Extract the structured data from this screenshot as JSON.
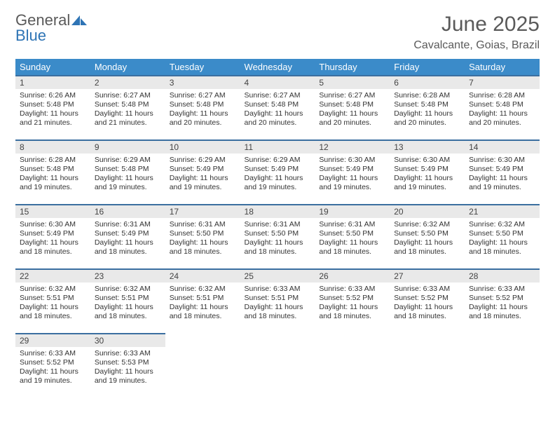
{
  "brand": {
    "part1": "General",
    "part2": "Blue"
  },
  "title": {
    "month": "June 2025",
    "location": "Cavalcante, Goias, Brazil"
  },
  "colors": {
    "header_bg": "#3b8bc9",
    "header_text": "#ffffff",
    "row_border": "#3b6fa0",
    "daynum_bg": "#e9e9e9",
    "brand_gray": "#5a5a5a",
    "brand_blue": "#2e74b5",
    "body_text": "#333333",
    "page_bg": "#ffffff"
  },
  "weekdays": [
    "Sunday",
    "Monday",
    "Tuesday",
    "Wednesday",
    "Thursday",
    "Friday",
    "Saturday"
  ],
  "calendar": {
    "type": "table",
    "columns": 7,
    "cell_fontsize": 10.5,
    "header_fontsize": 13,
    "days": [
      {
        "n": "1",
        "sr": "6:26 AM",
        "ss": "5:48 PM",
        "dl": "11 hours and 21 minutes."
      },
      {
        "n": "2",
        "sr": "6:27 AM",
        "ss": "5:48 PM",
        "dl": "11 hours and 21 minutes."
      },
      {
        "n": "3",
        "sr": "6:27 AM",
        "ss": "5:48 PM",
        "dl": "11 hours and 20 minutes."
      },
      {
        "n": "4",
        "sr": "6:27 AM",
        "ss": "5:48 PM",
        "dl": "11 hours and 20 minutes."
      },
      {
        "n": "5",
        "sr": "6:27 AM",
        "ss": "5:48 PM",
        "dl": "11 hours and 20 minutes."
      },
      {
        "n": "6",
        "sr": "6:28 AM",
        "ss": "5:48 PM",
        "dl": "11 hours and 20 minutes."
      },
      {
        "n": "7",
        "sr": "6:28 AM",
        "ss": "5:48 PM",
        "dl": "11 hours and 20 minutes."
      },
      {
        "n": "8",
        "sr": "6:28 AM",
        "ss": "5:48 PM",
        "dl": "11 hours and 19 minutes."
      },
      {
        "n": "9",
        "sr": "6:29 AM",
        "ss": "5:48 PM",
        "dl": "11 hours and 19 minutes."
      },
      {
        "n": "10",
        "sr": "6:29 AM",
        "ss": "5:49 PM",
        "dl": "11 hours and 19 minutes."
      },
      {
        "n": "11",
        "sr": "6:29 AM",
        "ss": "5:49 PM",
        "dl": "11 hours and 19 minutes."
      },
      {
        "n": "12",
        "sr": "6:30 AM",
        "ss": "5:49 PM",
        "dl": "11 hours and 19 minutes."
      },
      {
        "n": "13",
        "sr": "6:30 AM",
        "ss": "5:49 PM",
        "dl": "11 hours and 19 minutes."
      },
      {
        "n": "14",
        "sr": "6:30 AM",
        "ss": "5:49 PM",
        "dl": "11 hours and 19 minutes."
      },
      {
        "n": "15",
        "sr": "6:30 AM",
        "ss": "5:49 PM",
        "dl": "11 hours and 18 minutes."
      },
      {
        "n": "16",
        "sr": "6:31 AM",
        "ss": "5:49 PM",
        "dl": "11 hours and 18 minutes."
      },
      {
        "n": "17",
        "sr": "6:31 AM",
        "ss": "5:50 PM",
        "dl": "11 hours and 18 minutes."
      },
      {
        "n": "18",
        "sr": "6:31 AM",
        "ss": "5:50 PM",
        "dl": "11 hours and 18 minutes."
      },
      {
        "n": "19",
        "sr": "6:31 AM",
        "ss": "5:50 PM",
        "dl": "11 hours and 18 minutes."
      },
      {
        "n": "20",
        "sr": "6:32 AM",
        "ss": "5:50 PM",
        "dl": "11 hours and 18 minutes."
      },
      {
        "n": "21",
        "sr": "6:32 AM",
        "ss": "5:50 PM",
        "dl": "11 hours and 18 minutes."
      },
      {
        "n": "22",
        "sr": "6:32 AM",
        "ss": "5:51 PM",
        "dl": "11 hours and 18 minutes."
      },
      {
        "n": "23",
        "sr": "6:32 AM",
        "ss": "5:51 PM",
        "dl": "11 hours and 18 minutes."
      },
      {
        "n": "24",
        "sr": "6:32 AM",
        "ss": "5:51 PM",
        "dl": "11 hours and 18 minutes."
      },
      {
        "n": "25",
        "sr": "6:33 AM",
        "ss": "5:51 PM",
        "dl": "11 hours and 18 minutes."
      },
      {
        "n": "26",
        "sr": "6:33 AM",
        "ss": "5:52 PM",
        "dl": "11 hours and 18 minutes."
      },
      {
        "n": "27",
        "sr": "6:33 AM",
        "ss": "5:52 PM",
        "dl": "11 hours and 18 minutes."
      },
      {
        "n": "28",
        "sr": "6:33 AM",
        "ss": "5:52 PM",
        "dl": "11 hours and 18 minutes."
      },
      {
        "n": "29",
        "sr": "6:33 AM",
        "ss": "5:52 PM",
        "dl": "11 hours and 19 minutes."
      },
      {
        "n": "30",
        "sr": "6:33 AM",
        "ss": "5:53 PM",
        "dl": "11 hours and 19 minutes."
      }
    ]
  },
  "labels": {
    "sunrise": "Sunrise:",
    "sunset": "Sunset:",
    "daylight": "Daylight:"
  }
}
